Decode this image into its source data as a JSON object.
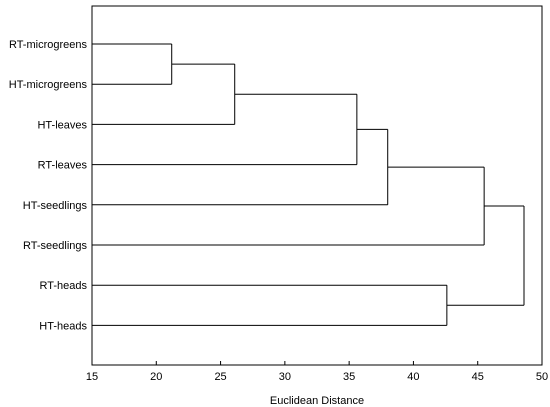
{
  "chart_data": {
    "type": "dendrogram",
    "xlabel": "Euclidean Distance",
    "xlim": [
      15,
      50
    ],
    "xticks": [
      15,
      20,
      25,
      30,
      35,
      40,
      45,
      50
    ],
    "leaves": [
      "RT-microgreens",
      "HT-microgreens",
      "HT-leaves",
      "RT-leaves",
      "HT-seedlings",
      "RT-seedlings",
      "RT-heads",
      "HT-heads"
    ],
    "merges": [
      {
        "members": [
          "RT-microgreens",
          "HT-microgreens"
        ],
        "distance": 21.2
      },
      {
        "members": [
          "RT-microgreens",
          "HT-microgreens",
          "HT-leaves"
        ],
        "distance": 26.1
      },
      {
        "members": [
          "RT-microgreens",
          "HT-microgreens",
          "HT-leaves",
          "RT-leaves"
        ],
        "distance": 35.6
      },
      {
        "members": [
          "RT-microgreens",
          "HT-microgreens",
          "HT-leaves",
          "RT-leaves",
          "HT-seedlings"
        ],
        "distance": 38.0
      },
      {
        "members": [
          "RT-microgreens",
          "HT-microgreens",
          "HT-leaves",
          "RT-leaves",
          "HT-seedlings",
          "RT-seedlings"
        ],
        "distance": 45.5
      },
      {
        "members": [
          "RT-heads",
          "HT-heads"
        ],
        "distance": 42.6
      },
      {
        "members": [
          "RT-microgreens",
          "HT-microgreens",
          "HT-leaves",
          "RT-leaves",
          "HT-seedlings",
          "RT-seedlings",
          "RT-heads",
          "HT-heads"
        ],
        "distance": 48.6
      }
    ],
    "leaf_distance": 15,
    "grid": false
  }
}
